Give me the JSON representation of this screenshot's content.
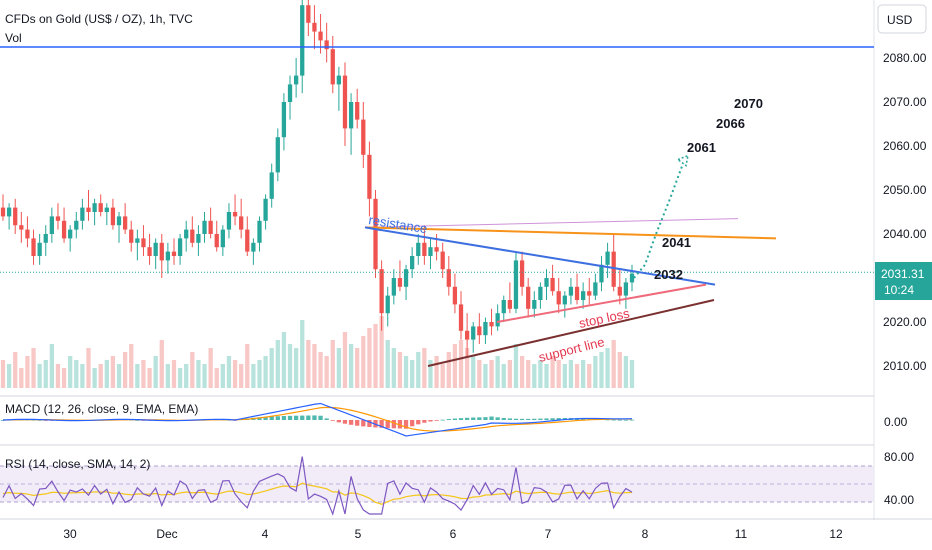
{
  "header": {
    "title": "CFDs on Gold (US$ / OZ), 1h, TVC",
    "volume_label": "Vol",
    "currency": "USD"
  },
  "price_badge": {
    "price": "2031.31",
    "countdown": "10:24"
  },
  "macd": {
    "label": "MACD (12, 26, close, 9, EMA, EMA)",
    "tick": "0.00"
  },
  "rsi": {
    "label": "RSI (14, close, SMA, 14, 2)",
    "ticks": [
      "80.00",
      "40.00"
    ]
  },
  "annotations": {
    "resistance": "resistance",
    "stop_loss": "stop loss",
    "support_line": "support line",
    "level_2032": "2032",
    "level_2041": "2041",
    "level_2061": "2061",
    "level_2066": "2066",
    "level_2070": "2070"
  },
  "colors": {
    "up": "#26a69a",
    "down": "#ef5350",
    "horizontal_line": "#2962ff",
    "resistance_line": "#3d6fe0",
    "orange_line": "#f7931a",
    "macd_line": "#2962ff",
    "signal_line": "#ff9800",
    "rsi_line": "#7e57c2",
    "rsi_ma": "#f5c518",
    "support_line": "#7b3030",
    "stop_loss_line": "#ef6a7a"
  },
  "chart_data": {
    "type": "candlestick",
    "instrument": "CFDs on Gold (US$ / OZ)",
    "timeframe": "1h",
    "y_axis": {
      "ticks": [
        "2080.00",
        "2070.00",
        "2060.00",
        "2050.00",
        "2040.00",
        "2030.00",
        "2020.00",
        "2010.00"
      ],
      "ylim": [
        2005,
        2092
      ]
    },
    "x_axis": {
      "ticks": [
        "30",
        "Dec",
        "4",
        "5",
        "6",
        "7",
        "8",
        "11",
        "12"
      ]
    },
    "horizontal_level": 2082.5,
    "last_price": 2031.31,
    "candles_ohlc": [
      [
        2046,
        2049,
        2043,
        2044
      ],
      [
        2044,
        2047,
        2041,
        2046
      ],
      [
        2046,
        2048,
        2040,
        2042
      ],
      [
        2042,
        2045,
        2038,
        2041
      ],
      [
        2041,
        2044,
        2037,
        2039
      ],
      [
        2039,
        2041,
        2033,
        2035
      ],
      [
        2035,
        2040,
        2033,
        2038
      ],
      [
        2038,
        2042,
        2035,
        2040
      ],
      [
        2040,
        2046,
        2038,
        2044
      ],
      [
        2044,
        2047,
        2041,
        2043
      ],
      [
        2043,
        2046,
        2038,
        2039
      ],
      [
        2039,
        2042,
        2036,
        2041
      ],
      [
        2041,
        2045,
        2039,
        2043
      ],
      [
        2043,
        2048,
        2041,
        2046
      ],
      [
        2046,
        2050,
        2043,
        2045
      ],
      [
        2045,
        2048,
        2042,
        2047
      ],
      [
        2047,
        2049,
        2044,
        2045
      ],
      [
        2045,
        2047,
        2042,
        2046
      ],
      [
        2046,
        2048,
        2041,
        2042
      ],
      [
        2042,
        2045,
        2038,
        2044
      ],
      [
        2044,
        2047,
        2040,
        2041
      ],
      [
        2041,
        2043,
        2036,
        2038
      ],
      [
        2038,
        2041,
        2034,
        2039
      ],
      [
        2039,
        2042,
        2035,
        2037
      ],
      [
        2037,
        2040,
        2033,
        2035
      ],
      [
        2035,
        2039,
        2032,
        2038
      ],
      [
        2038,
        2040,
        2030,
        2034
      ],
      [
        2034,
        2038,
        2031,
        2036
      ],
      [
        2036,
        2039,
        2033,
        2035
      ],
      [
        2035,
        2040,
        2033,
        2039
      ],
      [
        2039,
        2043,
        2036,
        2041
      ],
      [
        2041,
        2044,
        2037,
        2038
      ],
      [
        2038,
        2042,
        2035,
        2040
      ],
      [
        2040,
        2045,
        2038,
        2043
      ],
      [
        2043,
        2046,
        2039,
        2040
      ],
      [
        2040,
        2043,
        2036,
        2037
      ],
      [
        2037,
        2042,
        2035,
        2041
      ],
      [
        2041,
        2047,
        2039,
        2045
      ],
      [
        2045,
        2049,
        2042,
        2044
      ],
      [
        2044,
        2048,
        2039,
        2041
      ],
      [
        2041,
        2044,
        2035,
        2036
      ],
      [
        2036,
        2039,
        2033,
        2038
      ],
      [
        2038,
        2044,
        2036,
        2043
      ],
      [
        2043,
        2049,
        2041,
        2048
      ],
      [
        2048,
        2056,
        2046,
        2054
      ],
      [
        2054,
        2064,
        2052,
        2062
      ],
      [
        2062,
        2072,
        2059,
        2070
      ],
      [
        2070,
        2076,
        2066,
        2074
      ],
      [
        2074,
        2080,
        2071,
        2076
      ],
      [
        2076,
        2094,
        2072,
        2092
      ],
      [
        2092,
        2095,
        2085,
        2088
      ],
      [
        2088,
        2092,
        2082,
        2086
      ],
      [
        2086,
        2090,
        2081,
        2084
      ],
      [
        2084,
        2088,
        2079,
        2082
      ],
      [
        2082,
        2085,
        2072,
        2074
      ],
      [
        2074,
        2078,
        2068,
        2076
      ],
      [
        2076,
        2079,
        2060,
        2064
      ],
      [
        2064,
        2072,
        2058,
        2070
      ],
      [
        2070,
        2073,
        2064,
        2066
      ],
      [
        2066,
        2070,
        2055,
        2058
      ],
      [
        2058,
        2061,
        2044,
        2048
      ],
      [
        2048,
        2050,
        2030,
        2032
      ],
      [
        2032,
        2034,
        2018,
        2022
      ],
      [
        2022,
        2028,
        2019,
        2026
      ],
      [
        2026,
        2032,
        2024,
        2030
      ],
      [
        2030,
        2034,
        2027,
        2028
      ],
      [
        2028,
        2033,
        2025,
        2032
      ],
      [
        2032,
        2037,
        2030,
        2035
      ],
      [
        2035,
        2040,
        2033,
        2038
      ],
      [
        2038,
        2042,
        2033,
        2035
      ],
      [
        2035,
        2039,
        2032,
        2037
      ],
      [
        2037,
        2040,
        2034,
        2036
      ],
      [
        2036,
        2038,
        2030,
        2032
      ],
      [
        2032,
        2035,
        2026,
        2028
      ],
      [
        2028,
        2031,
        2022,
        2024
      ],
      [
        2024,
        2027,
        2016,
        2018
      ],
      [
        2018,
        2022,
        2012,
        2016
      ],
      [
        2016,
        2020,
        2013,
        2019
      ],
      [
        2019,
        2022,
        2015,
        2017
      ],
      [
        2017,
        2021,
        2015,
        2020
      ],
      [
        2020,
        2023,
        2017,
        2019
      ],
      [
        2019,
        2024,
        2018,
        2022
      ],
      [
        2022,
        2026,
        2020,
        2025
      ],
      [
        2025,
        2029,
        2022,
        2023
      ],
      [
        2023,
        2036,
        2022,
        2034
      ],
      [
        2034,
        2036,
        2026,
        2028
      ],
      [
        2028,
        2030,
        2021,
        2023
      ],
      [
        2023,
        2027,
        2021,
        2025
      ],
      [
        2025,
        2029,
        2023,
        2028
      ],
      [
        2028,
        2032,
        2025,
        2030
      ],
      [
        2030,
        2033,
        2026,
        2027
      ],
      [
        2027,
        2030,
        2022,
        2024
      ],
      [
        2024,
        2027,
        2021,
        2026
      ],
      [
        2026,
        2030,
        2024,
        2028
      ],
      [
        2028,
        2031,
        2024,
        2025
      ],
      [
        2025,
        2029,
        2023,
        2027
      ],
      [
        2027,
        2030,
        2024,
        2026
      ],
      [
        2026,
        2031,
        2025,
        2029
      ],
      [
        2029,
        2035,
        2027,
        2033
      ],
      [
        2033,
        2038,
        2030,
        2036
      ],
      [
        2036,
        2040,
        2027,
        2028
      ],
      [
        2028,
        2032,
        2024,
        2026
      ],
      [
        2026,
        2030,
        2023,
        2029
      ],
      [
        2029,
        2033,
        2027,
        2031
      ]
    ],
    "volume_relative": [
      0.35,
      0.3,
      0.45,
      0.25,
      0.4,
      0.5,
      0.3,
      0.35,
      0.55,
      0.3,
      0.25,
      0.4,
      0.35,
      0.3,
      0.5,
      0.25,
      0.3,
      0.35,
      0.4,
      0.3,
      0.45,
      0.55,
      0.3,
      0.35,
      0.25,
      0.4,
      0.6,
      0.3,
      0.35,
      0.25,
      0.3,
      0.45,
      0.35,
      0.3,
      0.5,
      0.25,
      0.3,
      0.4,
      0.35,
      0.3,
      0.55,
      0.3,
      0.35,
      0.4,
      0.5,
      0.6,
      0.7,
      0.55,
      0.5,
      0.85,
      0.6,
      0.55,
      0.45,
      0.4,
      0.6,
      0.5,
      0.7,
      0.55,
      0.5,
      0.65,
      0.75,
      0.8,
      0.9,
      0.6,
      0.5,
      0.45,
      0.4,
      0.35,
      0.45,
      0.5,
      0.35,
      0.4,
      0.3,
      0.45,
      0.55,
      0.6,
      0.5,
      0.4,
      0.35,
      0.3,
      0.35,
      0.4,
      0.3,
      0.35,
      0.55,
      0.4,
      0.35,
      0.3,
      0.35,
      0.3,
      0.4,
      0.35,
      0.3,
      0.35,
      0.3,
      0.35,
      0.3,
      0.4,
      0.45,
      0.5,
      0.6,
      0.45,
      0.4,
      0.35
    ],
    "macd_tick": "0.00",
    "rsi_ticks": [
      "80.00",
      "40.00"
    ],
    "drawings": {
      "resistance_line": [
        [
          2041.5,
          2028.5
        ]
      ],
      "resistance_extension": 2043.5,
      "orange_line": [
        [
          2041.5,
          2039
        ]
      ],
      "stop_loss_line": [
        [
          2020,
          2028.5
        ]
      ],
      "support_line": [
        [
          2010,
          2025
        ]
      ],
      "projection_target": 2056
    }
  }
}
